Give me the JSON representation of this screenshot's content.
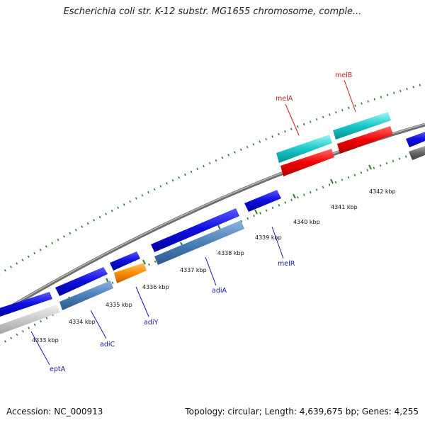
{
  "title": "Escherichia coli str. K-12 substr. MG1655 chromosome, comple...",
  "footer": {
    "accession": "Accession: NC_000913",
    "summary": "Topology: circular; Length: 4,639,675 bp; Genes: 4,255"
  },
  "colors": {
    "backbone": "#8c8c8c",
    "tick": "#2e7d2e",
    "red_label": "#c41a1a",
    "blue_label": "#1a1aa6"
  },
  "tick_labels": [
    "4333 kbp",
    "4334 kbp",
    "4335 kbp",
    "4336 kbp",
    "4337 kbp",
    "4338 kbp",
    "4339 kbp",
    "4340 kbp",
    "4341 kbp",
    "4342 kbp"
  ],
  "gene_labels": [
    "eptA",
    "adiC",
    "adiY",
    "adiA",
    "melR",
    "melA",
    "melB"
  ]
}
